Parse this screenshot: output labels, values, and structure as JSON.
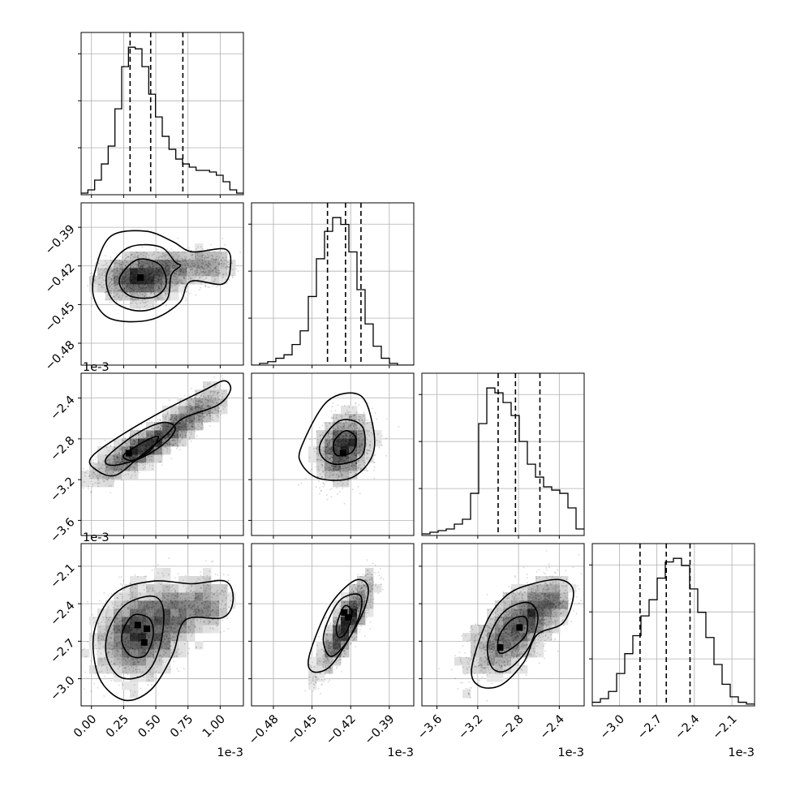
{
  "chart_data": {
    "type": "corner",
    "grid": true,
    "quantile_lines": "dashed",
    "params": [
      {
        "range": [
          -8.02e-05,
          0.0011802
        ],
        "ticks": [
          0.0,
          0.00025,
          0.0005,
          0.00075,
          0.001
        ],
        "tick_labels": [
          "0.00",
          "0.25",
          "0.50",
          "0.75",
          "1.00"
        ],
        "offset_label": "1e-3",
        "quantiles": [
          0.0003,
          0.00046,
          0.00071
        ],
        "hist_counts": [
          1,
          3,
          9,
          19,
          30,
          53,
          79,
          91,
          90,
          79,
          62,
          48,
          36,
          28,
          22,
          19,
          17,
          15,
          15,
          14,
          12,
          8,
          3,
          1
        ]
      },
      {
        "range": [
          -0.000497,
          -0.000371
        ],
        "ticks": [
          -0.00048,
          -0.00045,
          -0.00042,
          -0.00039
        ],
        "tick_labels": [
          "−0.48",
          "−0.45",
          "−0.42",
          "−0.39"
        ],
        "offset_label": "1e-3",
        "quantiles": [
          -0.000438,
          -0.000424,
          -0.000412
        ],
        "hist_counts": [
          0,
          1,
          2,
          4,
          6,
          12,
          20,
          40,
          62,
          78,
          86,
          82,
          66,
          44,
          24,
          11,
          4,
          1,
          0,
          0
        ]
      },
      {
        "range": [
          -0.003748,
          -0.002156
        ],
        "ticks": [
          -0.0036,
          -0.0032,
          -0.0028,
          -0.0024
        ],
        "tick_labels": [
          "−3.6",
          "−3.2",
          "−2.8",
          "−2.4"
        ],
        "offset_label": "1e-3",
        "quantiles": [
          -0.003,
          -0.00283,
          -0.00259
        ],
        "hist_counts": [
          1,
          2,
          3,
          4,
          7,
          10,
          26,
          69,
          91,
          88,
          82,
          74,
          58,
          44,
          36,
          30,
          28,
          26,
          17,
          4
        ]
      },
      {
        "range": [
          -0.003217,
          -0.001919
        ],
        "ticks": [
          -0.003,
          -0.0027,
          -0.0024,
          -0.0021
        ],
        "tick_labels": [
          "−3.0",
          "−2.7",
          "−2.4",
          "−2.1"
        ],
        "offset_label": "1e-3",
        "quantiles": [
          -0.002835,
          -0.002625,
          -0.002435
        ],
        "hist_counts": [
          2,
          4,
          8,
          18,
          29,
          39,
          50,
          59,
          71,
          80,
          82,
          78,
          65,
          52,
          38,
          23,
          12,
          5,
          2,
          1
        ]
      }
    ],
    "pairs": [
      {
        "row": 1,
        "col": 0,
        "center": [
          0.00039,
          -0.000429
        ],
        "spread": [
          0.00016,
          8.5e-06
        ],
        "correlation": 0.1,
        "tail": {
          "from": [
            0.00055,
            -0.00042
          ],
          "to": [
            0.00105,
            -0.00042
          ],
          "width": 6.5e-06
        },
        "contour_levels": [
          [
            [
              0.00023,
              -0.000427
            ],
            [
              0.00036,
              -0.000415
            ],
            [
              0.00053,
              -0.000419
            ],
            [
              0.00058,
              -0.000434
            ],
            [
              0.00049,
              -0.000444
            ],
            [
              0.00032,
              -0.000444
            ],
            [
              0.00023,
              -0.000437
            ]
          ],
          [
            [
              0.00012,
              -0.000426
            ],
            [
              0.00028,
              -0.000406
            ],
            [
              0.00053,
              -0.000405
            ],
            [
              0.00065,
              -0.000417
            ],
            [
              0.00069,
              -0.00042
            ],
            [
              0.00062,
              -0.000427
            ],
            [
              0.00058,
              -0.000447
            ],
            [
              0.00038,
              -0.000455
            ],
            [
              0.00017,
              -0.000447
            ]
          ],
          [
            [
              3e-05,
              -0.000423
            ],
            [
              0.00015,
              -0.000397
            ],
            [
              0.00042,
              -0.000393
            ],
            [
              0.00063,
              -0.000401
            ],
            [
              0.00078,
              -0.000409
            ],
            [
              0.00104,
              -0.000407
            ],
            [
              0.00108,
              -0.00042
            ],
            [
              0.00102,
              -0.000434
            ],
            [
              0.00077,
              -0.000432
            ],
            [
              0.00068,
              -0.000449
            ],
            [
              0.00045,
              -0.000462
            ],
            [
              0.00015,
              -0.000461
            ],
            [
              2e-05,
              -0.000445
            ]
          ]
        ],
        "peaks": [
          [
            0.00038,
            -0.000429
          ]
        ]
      },
      {
        "row": 2,
        "col": 0,
        "center": [
          0.0004,
          -0.00289
        ],
        "spread": [
          0.0002,
          0.00016
        ],
        "correlation": 0.85,
        "tail": {
          "from": [
            0.0006,
            -0.0027
          ],
          "to": [
            0.001,
            -0.00238
          ],
          "width": 9e-05
        },
        "contour_levels": [
          [
            [
              0.00025,
              -0.00296
            ],
            [
              0.00042,
              -0.00282
            ],
            [
              0.00052,
              -0.00278
            ],
            [
              0.00045,
              -0.00292
            ],
            [
              0.00032,
              -0.00301
            ]
          ],
          [
            [
              0.00012,
              -0.00298
            ],
            [
              0.00035,
              -0.00275
            ],
            [
              0.00055,
              -0.00264
            ],
            [
              0.00065,
              -0.00269
            ],
            [
              0.00058,
              -0.00283
            ],
            [
              0.00038,
              -0.00299
            ],
            [
              0.00016,
              -0.00306
            ]
          ],
          [
            [
              0.0,
              -0.00298
            ],
            [
              0.0002,
              -0.00279
            ],
            [
              0.00055,
              -0.00253
            ],
            [
              0.00088,
              -0.00232
            ],
            [
              0.00103,
              -0.00223
            ],
            [
              0.00108,
              -0.00232
            ],
            [
              0.00098,
              -0.00247
            ],
            [
              0.00071,
              -0.0026
            ],
            [
              0.00058,
              -0.00276
            ],
            [
              0.00038,
              -0.00297
            ],
            [
              0.00018,
              -0.00316
            ],
            [
              2e-05,
              -0.00309
            ]
          ]
        ],
        "peaks": [
          [
            0.00029,
            -0.00294
          ]
        ]
      },
      {
        "row": 2,
        "col": 1,
        "center": [
          -0.000425,
          -0.00289
        ],
        "spread": [
          1.05e-05,
          0.000165
        ],
        "correlation": 0.25,
        "tail": null,
        "contour_levels": [
          [
            [
              -0.000433,
              -0.00283
            ],
            [
              -0.000424,
              -0.00272
            ],
            [
              -0.000416,
              -0.00279
            ],
            [
              -0.000419,
              -0.00293
            ],
            [
              -0.000431,
              -0.00296
            ]
          ],
          [
            [
              -0.000443,
              -0.00283
            ],
            [
              -0.000428,
              -0.00262
            ],
            [
              -0.000411,
              -0.00268
            ],
            [
              -0.000411,
              -0.00296
            ],
            [
              -0.00043,
              -0.00305
            ],
            [
              -0.000442,
              -0.00298
            ]
          ],
          [
            [
              -0.000458,
              -0.00287
            ],
            [
              -0.000438,
              -0.00243
            ],
            [
              -0.000413,
              -0.00237
            ],
            [
              -0.000403,
              -0.00266
            ],
            [
              -0.000403,
              -0.00296
            ],
            [
              -0.000419,
              -0.00318
            ],
            [
              -0.000444,
              -0.00319
            ],
            [
              -0.000458,
              -0.00305
            ]
          ]
        ],
        "peaks": [
          [
            -0.000426,
            -0.00294
          ]
        ]
      },
      {
        "row": 3,
        "col": 0,
        "center": [
          0.00039,
          -0.00262
        ],
        "spread": [
          0.00017,
          0.00018
        ],
        "correlation": 0.25,
        "tail": {
          "from": [
            0.00055,
            -0.0025
          ],
          "to": [
            0.00103,
            -0.00237
          ],
          "width": 0.00011
        },
        "contour_levels": [
          [
            [
              0.00025,
              -0.0026
            ],
            [
              0.00033,
              -0.00249
            ],
            [
              0.00045,
              -0.00252
            ],
            [
              0.00048,
              -0.00265
            ],
            [
              0.00042,
              -0.00281
            ],
            [
              0.00031,
              -0.00282
            ],
            [
              0.00024,
              -0.00272
            ]
          ],
          [
            [
              0.00013,
              -0.00262
            ],
            [
              0.00026,
              -0.00241
            ],
            [
              0.00048,
              -0.00234
            ],
            [
              0.00056,
              -0.00246
            ],
            [
              0.00053,
              -0.00275
            ],
            [
              0.00042,
              -0.00296
            ],
            [
              0.00023,
              -0.00299
            ],
            [
              0.00012,
              -0.00283
            ]
          ],
          [
            [
              2e-05,
              -0.00263
            ],
            [
              0.00018,
              -0.00232
            ],
            [
              0.00047,
              -0.00222
            ],
            [
              0.00078,
              -0.00224
            ],
            [
              0.00104,
              -0.00222
            ],
            [
              0.0011,
              -0.00237
            ],
            [
              0.00102,
              -0.00251
            ],
            [
              0.00073,
              -0.00253
            ],
            [
              0.00063,
              -0.00281
            ],
            [
              0.00046,
              -0.00309
            ],
            [
              0.00025,
              -0.00317
            ],
            [
              6e-05,
              -0.00299
            ]
          ]
        ],
        "peaks": [
          [
            0.00036,
            -0.00257
          ],
          [
            0.00043,
            -0.0026
          ],
          [
            0.00041,
            -0.00271
          ]
        ]
      },
      {
        "row": 3,
        "col": 1,
        "center": [
          -0.000424,
          -0.00257
        ],
        "spread": [
          1.05e-05,
          0.00019
        ],
        "correlation": 0.86,
        "tail": null,
        "contour_levels": [
          [
            [
              -0.000431,
              -0.00258
            ],
            [
              -0.000425,
              -0.00242
            ],
            [
              -0.000419,
              -0.00247
            ],
            [
              -0.000423,
              -0.00262
            ],
            [
              -0.000429,
              -0.00267
            ]
          ],
          [
            [
              -0.000441,
              -0.00265
            ],
            [
              -0.000429,
              -0.00238
            ],
            [
              -0.000413,
              -0.00233
            ],
            [
              -0.000413,
              -0.00249
            ],
            [
              -0.000424,
              -0.00272
            ],
            [
              -0.000436,
              -0.00282
            ]
          ],
          [
            [
              -0.000452,
              -0.00281
            ],
            [
              -0.000437,
              -0.00243
            ],
            [
              -0.000418,
              -0.00222
            ],
            [
              -0.000407,
              -0.00225
            ],
            [
              -0.000409,
              -0.00243
            ],
            [
              -0.000423,
              -0.00271
            ],
            [
              -0.000437,
              -0.00291
            ],
            [
              -0.00045,
              -0.00294
            ]
          ]
        ],
        "peaks": [
          [
            -0.000425,
            -0.00247
          ],
          [
            -0.000422,
            -0.00251
          ]
        ]
      },
      {
        "row": 3,
        "col": 2,
        "center": [
          -0.00286,
          -0.00262
        ],
        "spread": [
          0.00022,
          0.00018
        ],
        "correlation": 0.6,
        "tail": {
          "from": [
            -0.00275,
            -0.0025
          ],
          "to": [
            -0.00238,
            -0.00234
          ],
          "width": 0.0001
        },
        "contour_levels": [
          [
            [
              -0.00299,
              -0.00266
            ],
            [
              -0.00287,
              -0.00253
            ],
            [
              -0.00273,
              -0.00251
            ],
            [
              -0.00273,
              -0.00265
            ],
            [
              -0.00289,
              -0.00277
            ],
            [
              -0.00299,
              -0.00279
            ]
          ],
          [
            [
              -0.0031,
              -0.00271
            ],
            [
              -0.00295,
              -0.00247
            ],
            [
              -0.00271,
              -0.00239
            ],
            [
              -0.00261,
              -0.00251
            ],
            [
              -0.0027,
              -0.00275
            ],
            [
              -0.00291,
              -0.00293
            ],
            [
              -0.00306,
              -0.00291
            ]
          ],
          [
            [
              -0.00326,
              -0.00292
            ],
            [
              -0.00311,
              -0.00254
            ],
            [
              -0.00291,
              -0.00233
            ],
            [
              -0.00266,
              -0.00224
            ],
            [
              -0.00238,
              -0.00221
            ],
            [
              -0.00226,
              -0.00231
            ],
            [
              -0.00236,
              -0.00255
            ],
            [
              -0.00262,
              -0.00265
            ],
            [
              -0.00275,
              -0.00287
            ],
            [
              -0.00297,
              -0.00305
            ],
            [
              -0.00318,
              -0.00306
            ]
          ]
        ],
        "peaks": [
          [
            -0.00279,
            -0.00259
          ],
          [
            -0.00298,
            -0.00275
          ]
        ]
      }
    ]
  }
}
